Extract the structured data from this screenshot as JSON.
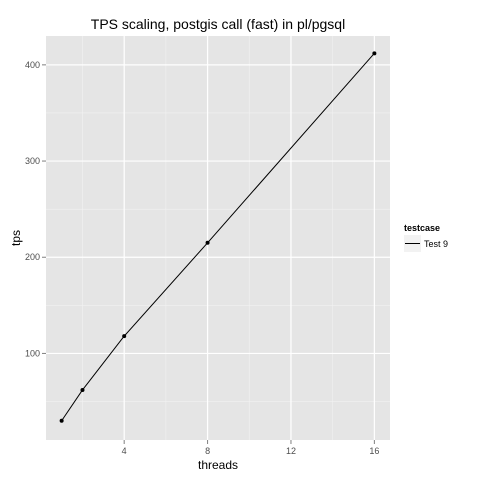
{
  "chart_data": {
    "type": "line",
    "title": "TPS scaling, postgis call (fast) in pl/pgsql",
    "xlabel": "threads",
    "ylabel": "tps",
    "xlim": [
      0.25,
      16.75
    ],
    "ylim": [
      10,
      430
    ],
    "x_ticks": [
      4,
      8,
      12,
      16
    ],
    "y_ticks": [
      100,
      200,
      300,
      400
    ],
    "grid": true,
    "legend": {
      "title": "testcase",
      "position": "right"
    },
    "series": [
      {
        "name": "Test 9",
        "x": [
          1,
          2,
          4,
          8,
          16
        ],
        "y": [
          30,
          62,
          118,
          215,
          412
        ],
        "color": "#000000"
      }
    ]
  },
  "colors": {
    "panel_background": "#e5e5e5",
    "major_grid": "#ffffff",
    "minor_grid": "#f2f2f2",
    "tick_text": "#4d4d4d"
  }
}
